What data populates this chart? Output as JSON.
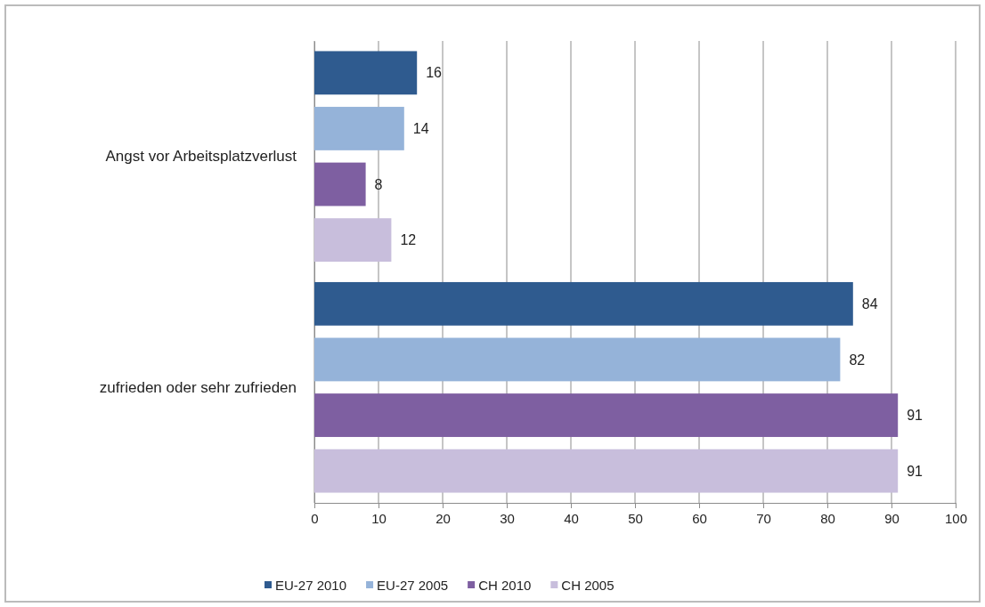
{
  "chart_data": {
    "type": "bar",
    "orientation": "horizontal",
    "categories": [
      "Angst vor Arbeitsplatzverlust",
      "zufrieden oder sehr zufrieden"
    ],
    "series": [
      {
        "name": "EU-27 2010",
        "color": "#2f5b8f",
        "values": [
          16,
          84
        ]
      },
      {
        "name": "EU-27 2005",
        "color": "#95b3d9",
        "values": [
          14,
          82
        ]
      },
      {
        "name": "CH 2010",
        "color": "#7e5fa1",
        "values": [
          8,
          91
        ]
      },
      {
        "name": "CH 2005",
        "color": "#c8bedc",
        "values": [
          12,
          91
        ]
      }
    ],
    "xlim": [
      0,
      100
    ],
    "xticks": [
      0,
      10,
      20,
      30,
      40,
      50,
      60,
      70,
      80,
      90,
      100
    ],
    "grid": "x",
    "data_labels": true,
    "legend": "bottom"
  }
}
